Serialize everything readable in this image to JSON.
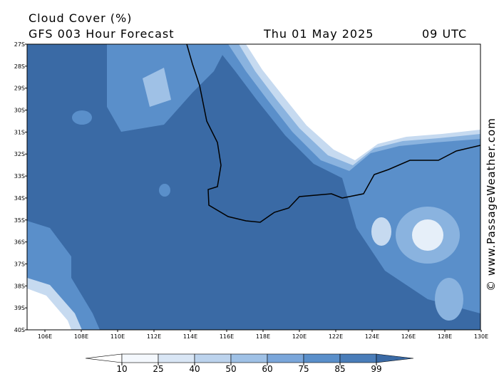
{
  "header": {
    "title": "Cloud Cover (%)",
    "subtitle": "GFS 003 Hour Forecast",
    "date": "Thu 01 May 2025",
    "time": "09 UTC"
  },
  "map": {
    "lat_labels": [
      "27S",
      "28S",
      "29S",
      "30S",
      "31S",
      "32S",
      "33S",
      "34S",
      "35S",
      "36S",
      "37S",
      "38S",
      "39S",
      "40S"
    ],
    "lon_labels": [
      "106E",
      "108E",
      "110E",
      "112E",
      "114E",
      "116E",
      "118E",
      "120E",
      "122E",
      "124E",
      "126E",
      "128E",
      "130E"
    ]
  },
  "colorbar": {
    "ticks": [
      10,
      25,
      40,
      50,
      60,
      75,
      85,
      99
    ]
  },
  "credit": "© www.PassageWeather.com"
}
